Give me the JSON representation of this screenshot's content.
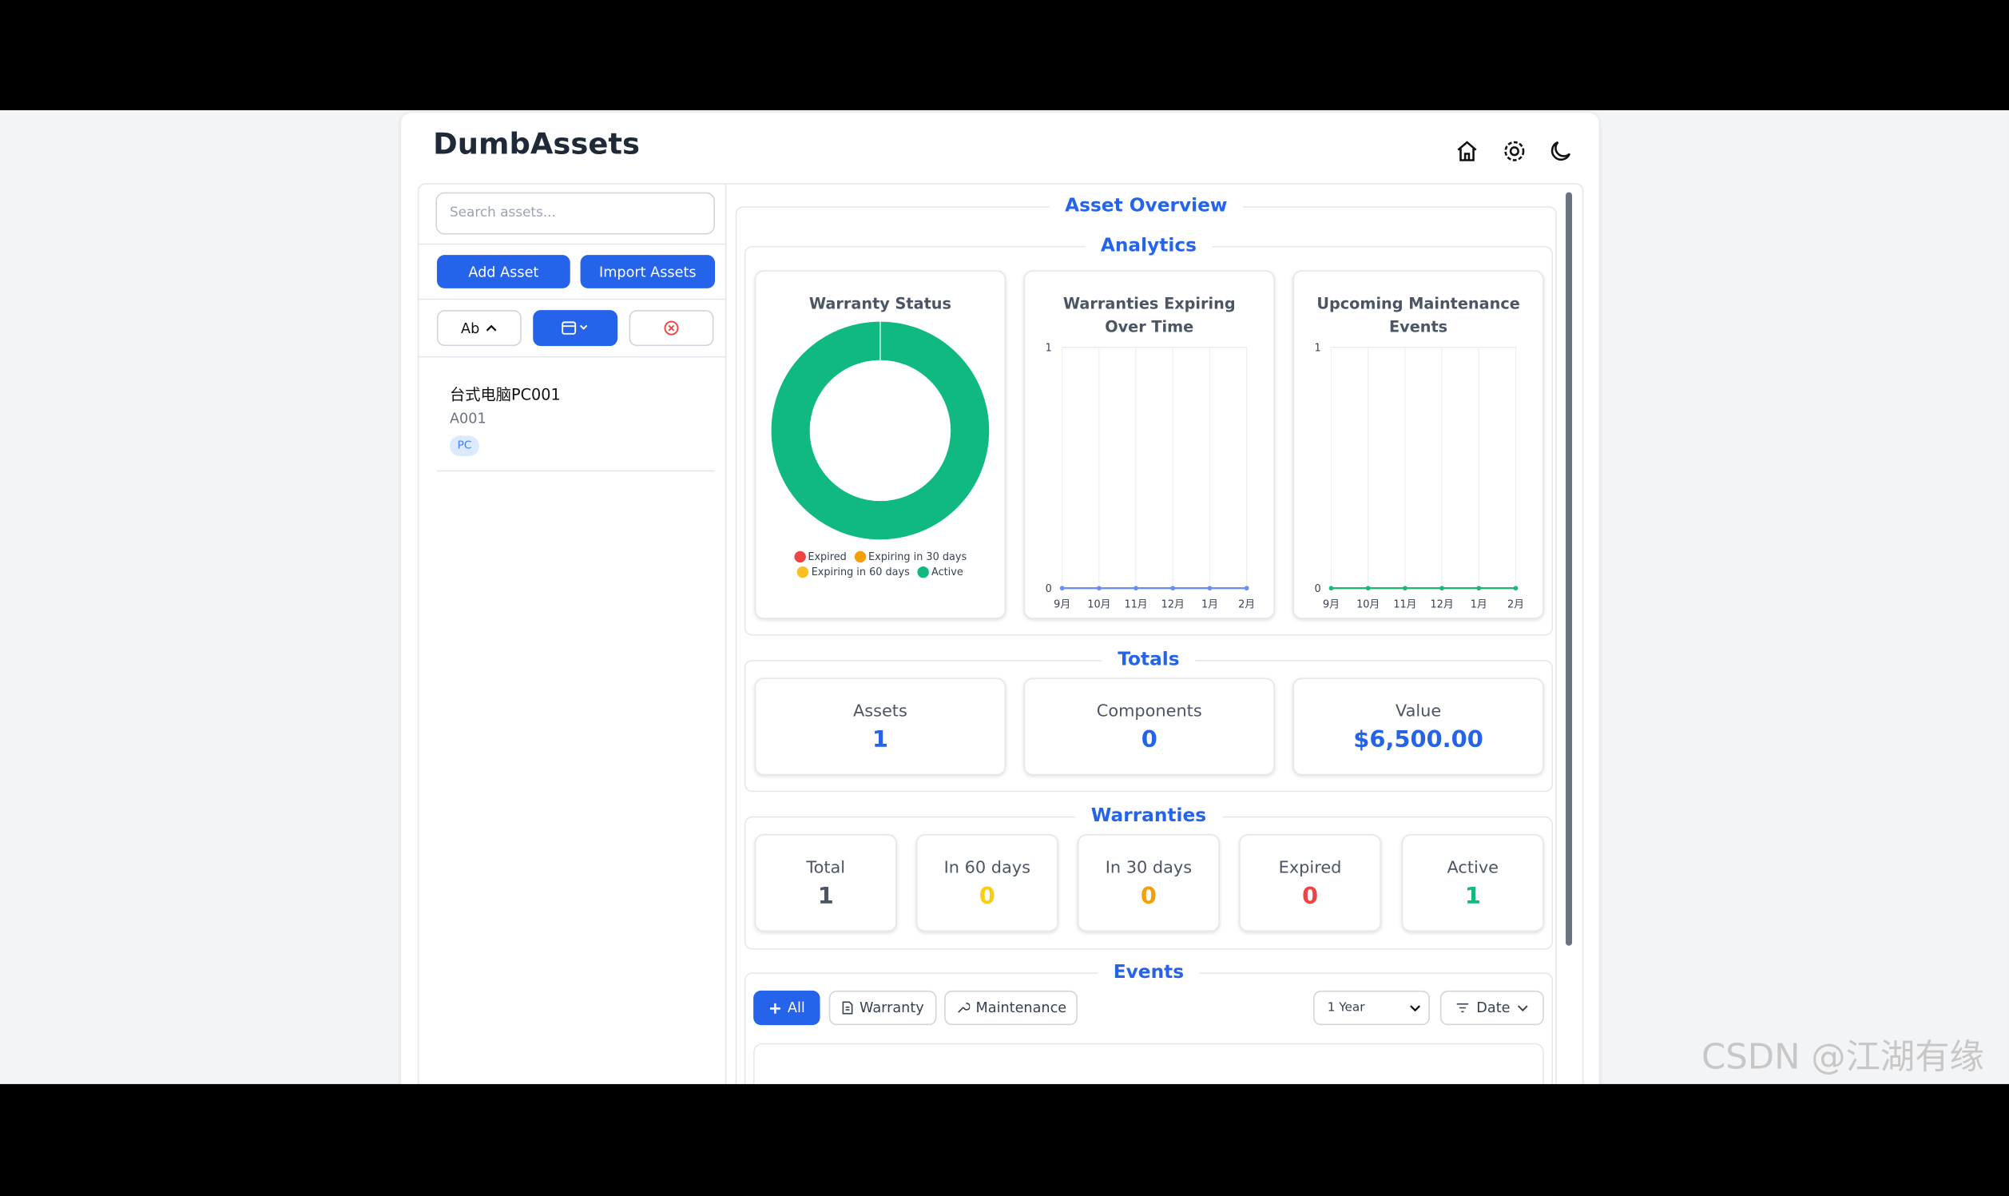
{
  "header": {
    "title": "DumbAssets"
  },
  "sidebar": {
    "search_placeholder": "Search assets...",
    "add_button": "Add Asset",
    "import_button": "Import Assets",
    "sort_label": "Ab",
    "assets": [
      {
        "name": "台式电脑PC001",
        "code": "A001",
        "tag": "PC"
      }
    ]
  },
  "overview": {
    "title": "Asset Overview",
    "analytics_title": "Analytics"
  },
  "chart_data": [
    {
      "type": "pie",
      "title": "Warranty Status",
      "categories": [
        "Expired",
        "Expiring in 30 days",
        "Expiring in 60 days",
        "Active"
      ],
      "values": [
        0,
        0,
        0,
        1
      ],
      "colors": [
        "#ef4444",
        "#f59e0b",
        "#fbbf24",
        "#10b981"
      ]
    },
    {
      "type": "line",
      "title": "Warranties Expiring Over Time",
      "categories": [
        "9月",
        "10月",
        "11月",
        "12月",
        "1月",
        "2月"
      ],
      "series": [
        {
          "name": "Warranties",
          "color": "#6b8ff0",
          "values": [
            0,
            0,
            0,
            0,
            0,
            0
          ]
        }
      ],
      "ylim": [
        0,
        1
      ],
      "yticks": [
        0,
        1
      ],
      "grid": true
    },
    {
      "type": "line",
      "title": "Upcoming Maintenance Events",
      "categories": [
        "9月",
        "10月",
        "11月",
        "12月",
        "1月",
        "2月"
      ],
      "series": [
        {
          "name": "Maintenance",
          "color": "#22b573",
          "values": [
            0,
            0,
            0,
            0,
            0,
            0
          ]
        }
      ],
      "ylim": [
        0,
        1
      ],
      "yticks": [
        0,
        1
      ],
      "grid": true
    }
  ],
  "totals": {
    "title": "Totals",
    "items": [
      {
        "label": "Assets",
        "value": "1"
      },
      {
        "label": "Components",
        "value": "0"
      },
      {
        "label": "Value",
        "value": "$6,500.00"
      }
    ]
  },
  "warranties": {
    "title": "Warranties",
    "items": [
      {
        "label": "Total",
        "value": "1",
        "color": "#4b5563"
      },
      {
        "label": "In 60 days",
        "value": "0",
        "color": "#facc15"
      },
      {
        "label": "In 30 days",
        "value": "0",
        "color": "#f59e0b"
      },
      {
        "label": "Expired",
        "value": "0",
        "color": "#ef4444"
      },
      {
        "label": "Active",
        "value": "1",
        "color": "#10b981"
      }
    ]
  },
  "events": {
    "title": "Events",
    "filters": [
      "All",
      "Warranty",
      "Maintenance"
    ],
    "range": "1 Year",
    "sort": "Date"
  },
  "watermark": "CSDN @江湖有缘"
}
